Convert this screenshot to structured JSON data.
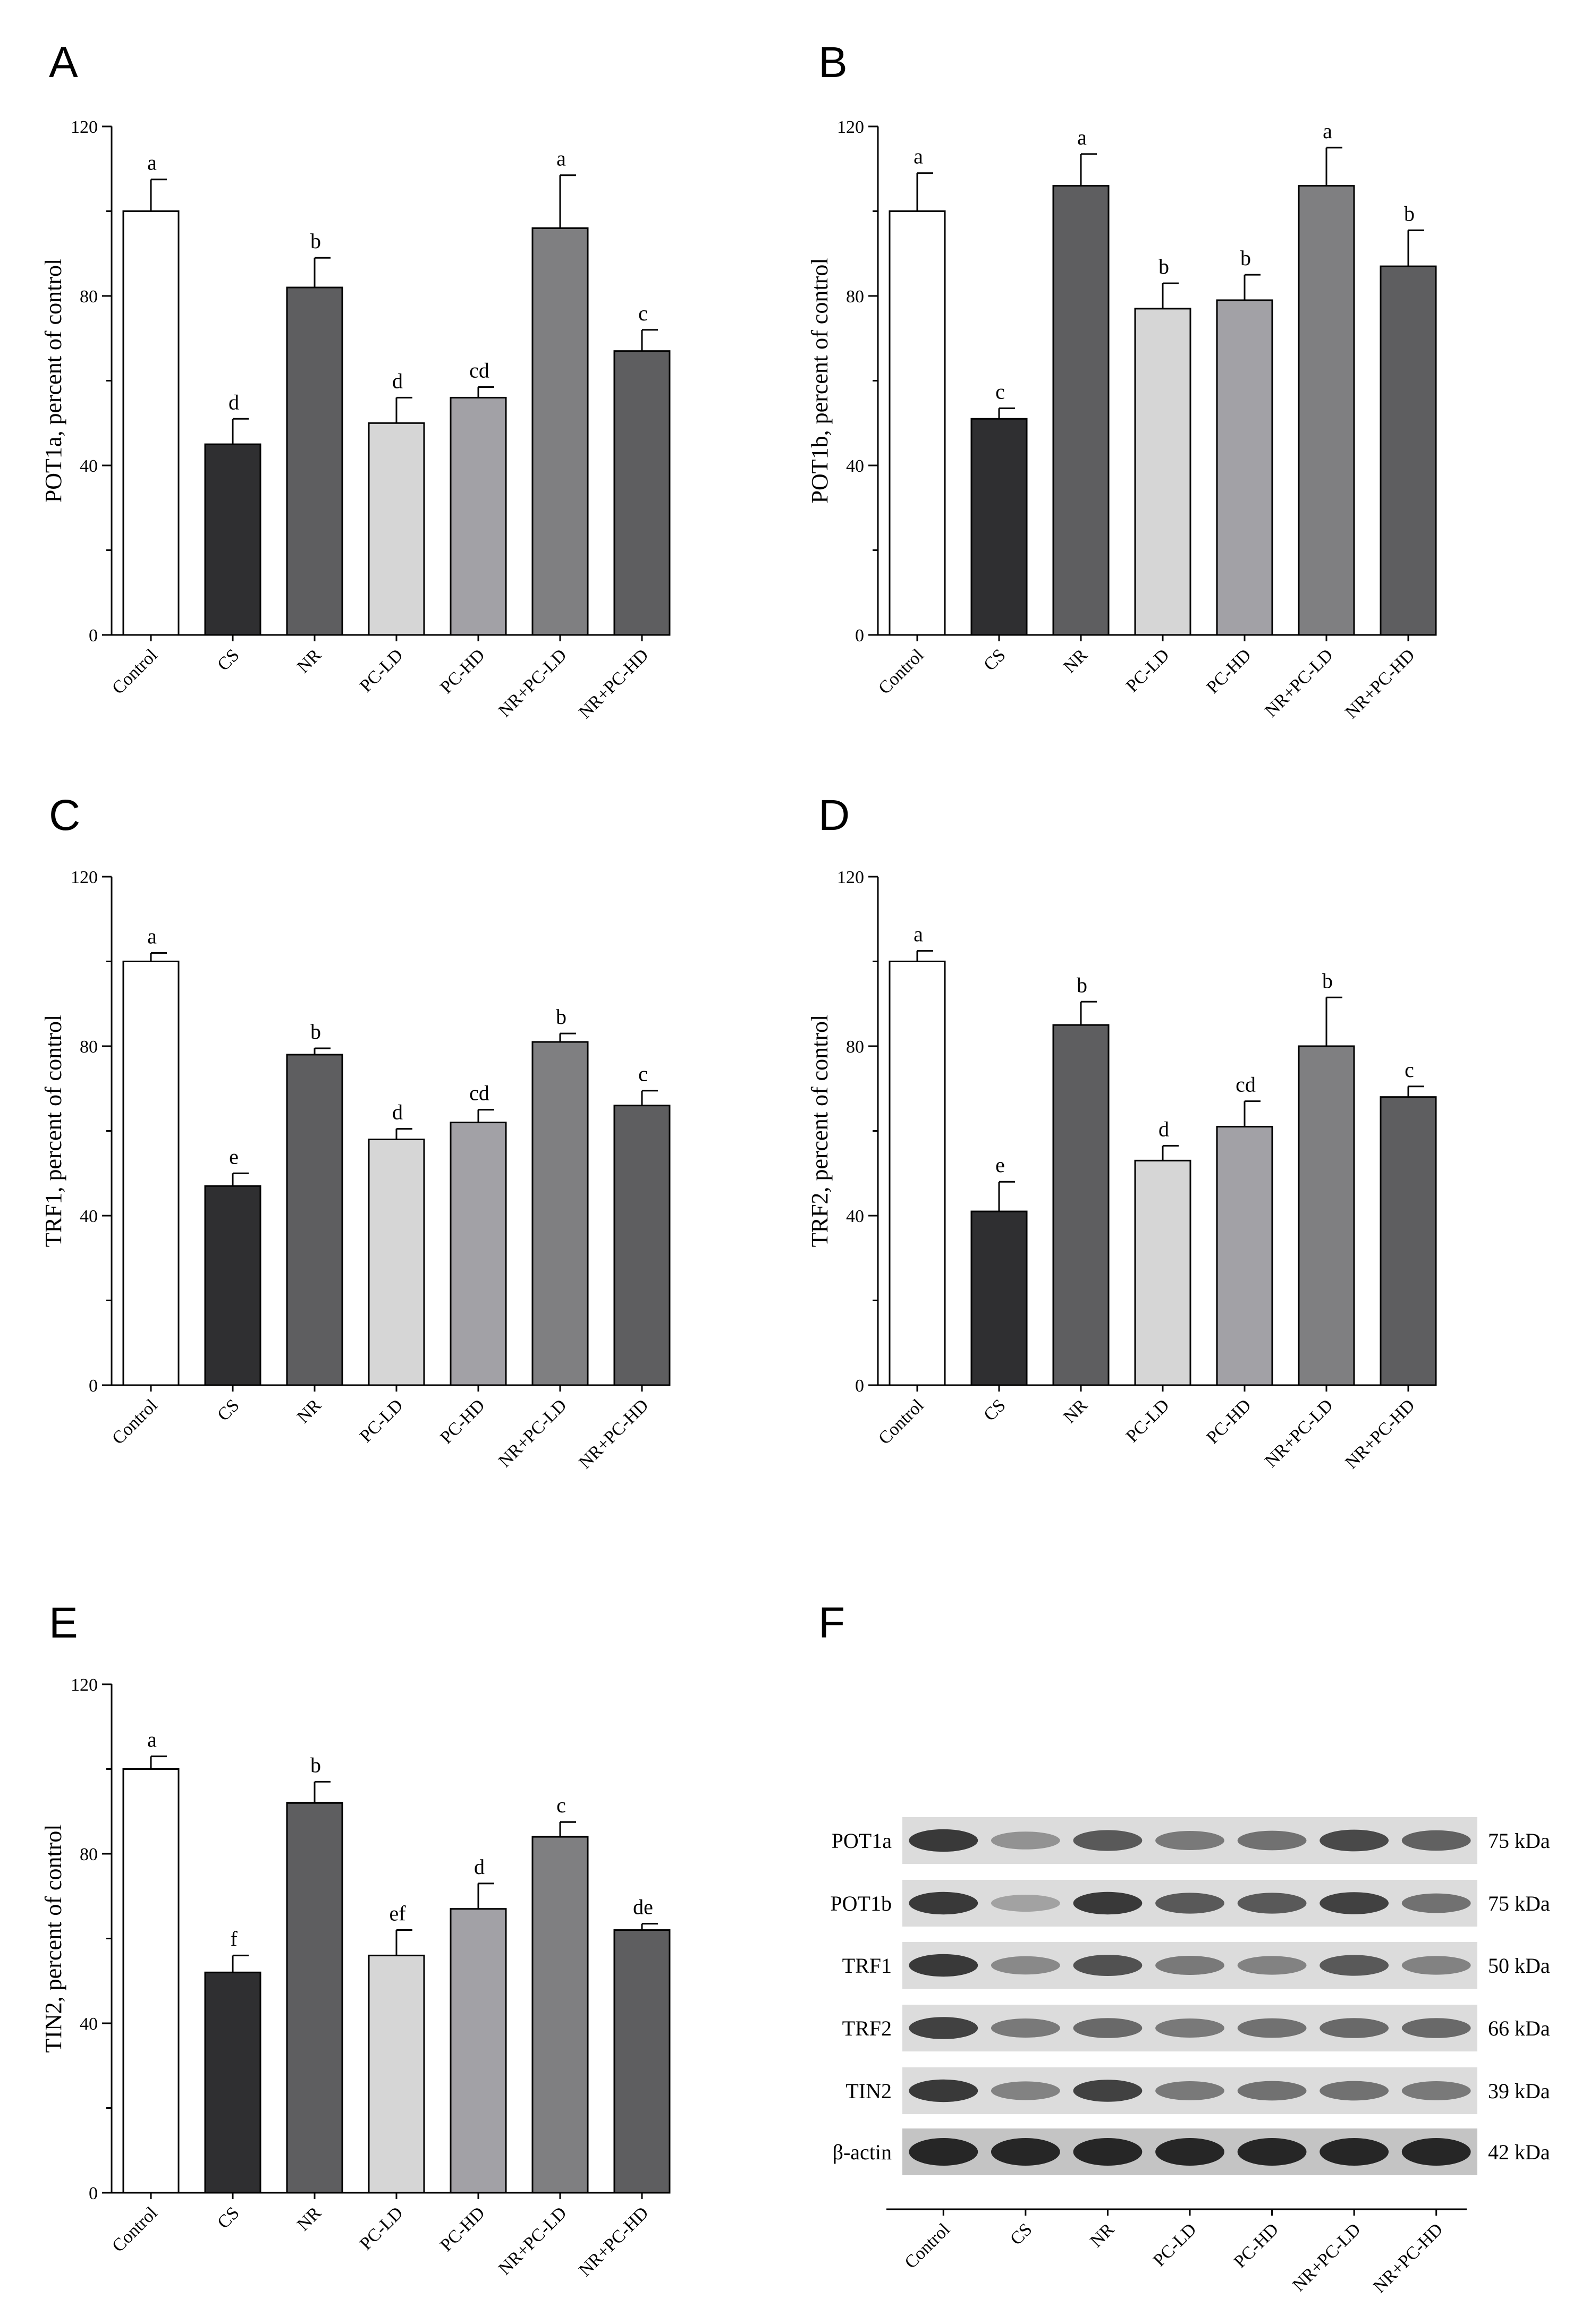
{
  "figure": {
    "categories": [
      "Control",
      "CS",
      "NR",
      "PC-LD",
      "PC-HD",
      "NR+PC-LD",
      "NR+PC-HD"
    ],
    "bar_colors": [
      "#ffffff",
      "#2f2f31",
      "#5e5e60",
      "#d6d6d6",
      "#a2a1a6",
      "#7f7f81",
      "#5e5e60"
    ],
    "axis_color": "#000000"
  },
  "chart_data": [
    {
      "panel": "A",
      "type": "bar",
      "ylabel": "POT1a, percent of control",
      "xlabel": "",
      "ylim": [
        0,
        120
      ],
      "yticks": [
        0,
        40,
        80,
        120
      ],
      "categories": [
        "Control",
        "CS",
        "NR",
        "PC-LD",
        "PC-HD",
        "NR+PC-LD",
        "NR+PC-HD"
      ],
      "values": [
        100,
        45,
        82,
        50,
        56,
        96,
        67
      ],
      "errors": [
        7.5,
        6,
        7,
        6,
        2.5,
        12.5,
        5
      ],
      "significance": [
        "a",
        "d",
        "b",
        "d",
        "cd",
        "a",
        "c"
      ]
    },
    {
      "panel": "B",
      "type": "bar",
      "ylabel": "POT1b, percent of control",
      "xlabel": "",
      "ylim": [
        0,
        120
      ],
      "yticks": [
        0,
        40,
        80,
        120
      ],
      "categories": [
        "Control",
        "CS",
        "NR",
        "PC-LD",
        "PC-HD",
        "NR+PC-LD",
        "NR+PC-HD"
      ],
      "values": [
        100,
        51,
        106,
        77,
        79,
        106,
        87
      ],
      "errors": [
        9,
        2.5,
        7.5,
        6,
        6,
        9,
        8.5
      ],
      "significance": [
        "a",
        "c",
        "a",
        "b",
        "b",
        "a",
        "b"
      ]
    },
    {
      "panel": "C",
      "type": "bar",
      "ylabel": "TRF1, percent of control",
      "xlabel": "",
      "ylim": [
        0,
        120
      ],
      "yticks": [
        0,
        40,
        80,
        120
      ],
      "categories": [
        "Control",
        "CS",
        "NR",
        "PC-LD",
        "PC-HD",
        "NR+PC-LD",
        "NR+PC-HD"
      ],
      "values": [
        100,
        47,
        78,
        58,
        62,
        81,
        66
      ],
      "errors": [
        2,
        3,
        1.5,
        2.5,
        3,
        2,
        3.5
      ],
      "significance": [
        "a",
        "e",
        "b",
        "d",
        "cd",
        "b",
        "c"
      ]
    },
    {
      "panel": "D",
      "type": "bar",
      "ylabel": "TRF2, percent of control",
      "xlabel": "",
      "ylim": [
        0,
        120
      ],
      "yticks": [
        0,
        40,
        80,
        120
      ],
      "categories": [
        "Control",
        "CS",
        "NR",
        "PC-LD",
        "PC-HD",
        "NR+PC-LD",
        "NR+PC-HD"
      ],
      "values": [
        100,
        41,
        85,
        53,
        61,
        80,
        68
      ],
      "errors": [
        2.5,
        7,
        5.5,
        3.5,
        6,
        11.5,
        2.5
      ],
      "significance": [
        "a",
        "e",
        "b",
        "d",
        "cd",
        "b",
        "c"
      ]
    },
    {
      "panel": "E",
      "type": "bar",
      "ylabel": "TIN2, percent of control",
      "xlabel": "",
      "ylim": [
        0,
        120
      ],
      "yticks": [
        0,
        40,
        80,
        120
      ],
      "categories": [
        "Control",
        "CS",
        "NR",
        "PC-LD",
        "PC-HD",
        "NR+PC-LD",
        "NR+PC-HD"
      ],
      "values": [
        100,
        52,
        92,
        56,
        67,
        84,
        62
      ],
      "errors": [
        3,
        4,
        5,
        6,
        6,
        3.5,
        1.5
      ],
      "significance": [
        "a",
        "f",
        "b",
        "ef",
        "d",
        "c",
        "de"
      ]
    }
  ],
  "blot": {
    "panel": "F",
    "rows": [
      {
        "protein": "POT1a",
        "weight": "75 kDa",
        "intensity": [
          0.9,
          0.35,
          0.7,
          0.5,
          0.55,
          0.8,
          0.65
        ]
      },
      {
        "protein": "POT1b",
        "weight": "75 kDa",
        "intensity": [
          0.9,
          0.25,
          0.9,
          0.7,
          0.7,
          0.85,
          0.55
        ]
      },
      {
        "protein": "TRF1",
        "weight": "50 kDa",
        "intensity": [
          0.9,
          0.4,
          0.75,
          0.5,
          0.45,
          0.7,
          0.45
        ]
      },
      {
        "protein": "TRF2",
        "weight": "66 kDa",
        "intensity": [
          0.85,
          0.5,
          0.6,
          0.5,
          0.55,
          0.6,
          0.6
        ]
      },
      {
        "protein": "TIN2",
        "weight": "39 kDa",
        "intensity": [
          0.9,
          0.45,
          0.85,
          0.5,
          0.55,
          0.55,
          0.5
        ]
      },
      {
        "protein": "β-actin",
        "weight": "42 kDa",
        "intensity": [
          1.0,
          1.0,
          1.0,
          1.0,
          1.0,
          1.0,
          1.0
        ]
      }
    ]
  }
}
